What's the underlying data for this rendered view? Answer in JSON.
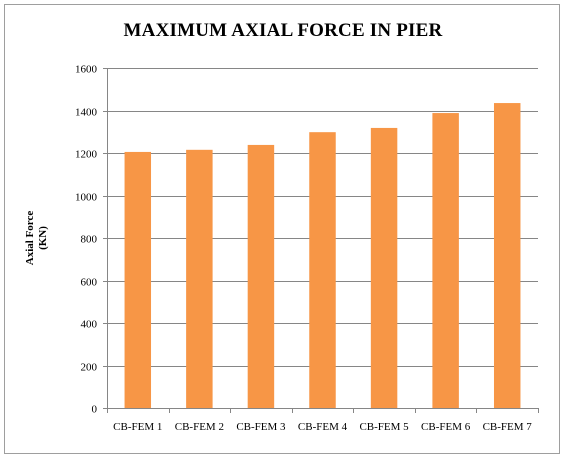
{
  "chart_data": {
    "type": "bar",
    "title": "MAXIMUM AXIAL FORCE IN PIER",
    "xlabel": "",
    "ylabel": [
      "Axial Force",
      "(KN)"
    ],
    "categories": [
      "CB-FEM 1",
      "CB-FEM 2",
      "CB-FEM 3",
      "CB-FEM 4",
      "CB-FEM 5",
      "CB-FEM 6",
      "CB-FEM 7"
    ],
    "values": [
      1205,
      1215,
      1238,
      1298,
      1318,
      1388,
      1435
    ],
    "ylim": [
      0,
      1600
    ],
    "yticks": [
      0,
      200,
      400,
      600,
      800,
      1000,
      1200,
      1400,
      1600
    ],
    "grid": true,
    "legend": "none",
    "bar_color": "#F79646",
    "grid_color": "#868686"
  }
}
